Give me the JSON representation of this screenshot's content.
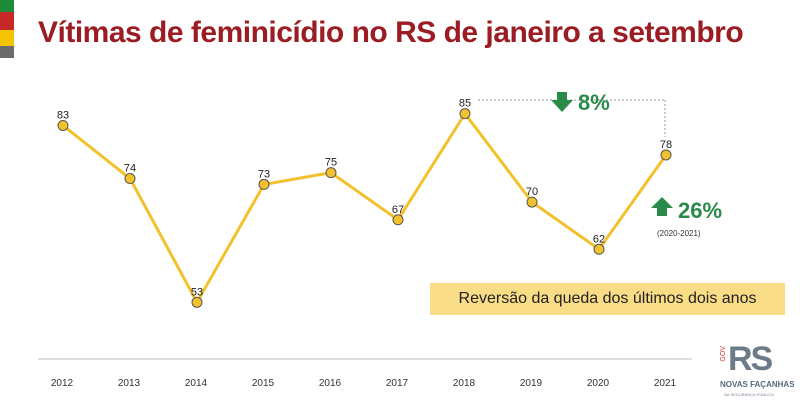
{
  "title": "Vítimas de feminicídio no RS de janeiro a setembro",
  "annotations": {
    "change_2018_2021": "8%",
    "change_2020_2021": "26%",
    "change_2020_2021_period": "(2020-2021)",
    "banner": "Reversão da queda dos últimos dois anos"
  },
  "logo": {
    "gov": "GOV",
    "rs": "RS",
    "slogan": "NOVAS FAÇANHAS",
    "sub": "NA SEGURANÇA PÚBLICA"
  },
  "colors": {
    "line": "#f2c12e",
    "title": "#9b1c22",
    "arrow": "#2a8a4a",
    "banner": "#f9dc86",
    "flag": [
      "#1f8a3a",
      "#c62828",
      "#f5c400",
      "#6b6b6b"
    ]
  },
  "chart_data": {
    "type": "line",
    "title": "Vítimas de feminicídio no RS de janeiro a setembro",
    "categories": [
      "2012",
      "2013",
      "2014",
      "2015",
      "2016",
      "2017",
      "2018",
      "2019",
      "2020",
      "2021"
    ],
    "series": [
      {
        "values": [
          83,
          74,
          53,
          73,
          75,
          67,
          85,
          70,
          62,
          78
        ]
      }
    ],
    "ylim": [
      50,
      88
    ],
    "grid": false,
    "legend": "none"
  }
}
